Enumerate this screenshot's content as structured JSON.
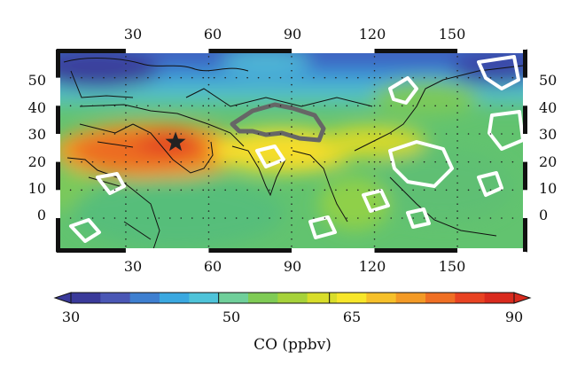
{
  "map": {
    "variable_label": "CO (ppbv)",
    "lon_ticks": [
      "30",
      "60",
      "90",
      "120",
      "150"
    ],
    "lat_ticks": [
      "50",
      "40",
      "30",
      "20",
      "10",
      "0"
    ],
    "lon_range": [
      5,
      175
    ],
    "lat_range": [
      -12,
      60
    ],
    "marker": {
      "type": "star",
      "lon": 48,
      "lat": 27,
      "color": "#222222"
    },
    "overlays": [
      {
        "name": "tibetan-plateau-contour",
        "color": "#666666"
      },
      {
        "name": "white-contours",
        "color": "#ffffff"
      }
    ]
  },
  "colorbar": {
    "min": 30,
    "max": 90,
    "tick_labels": [
      "30",
      "50",
      "65",
      "90"
    ],
    "tick_values": [
      30,
      50,
      65,
      90
    ],
    "colors": [
      "#3a3a9a",
      "#4a57b5",
      "#3e7fd0",
      "#3aa8e0",
      "#4ec3d9",
      "#6fcf9a",
      "#7fcb55",
      "#a6d23a",
      "#d8dd2a",
      "#f7e62a",
      "#f6c02a",
      "#f39a26",
      "#ef6f24",
      "#e84322",
      "#d92a1e"
    ]
  }
}
